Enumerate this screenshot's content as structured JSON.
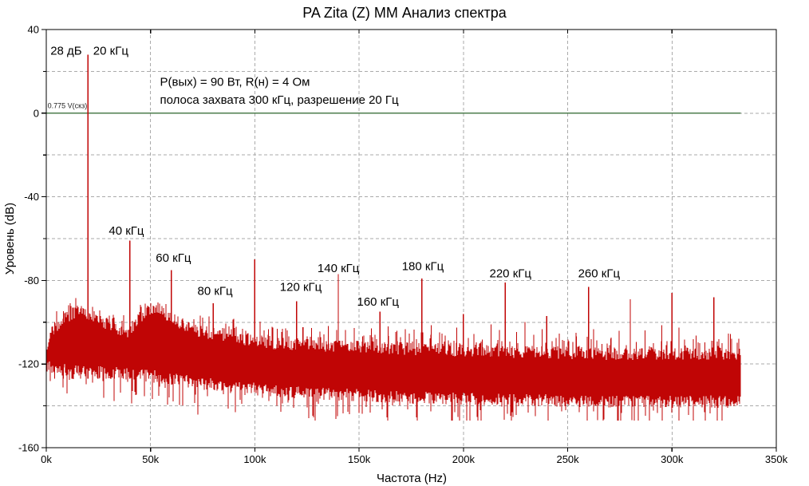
{
  "window": {
    "title": "PA Zita (Z) MM Анализ спектра"
  },
  "chart_data": {
    "type": "line",
    "title": "PA Zita (Z) MM Анализ спектра",
    "xlabel": "Частота (Hz)",
    "ylabel": "Уровень (dB)",
    "xlim_khz": [
      0,
      350
    ],
    "ylim_db": [
      -160,
      40
    ],
    "x_ticks": [
      {
        "value_khz": 0,
        "label": "0k"
      },
      {
        "value_khz": 50,
        "label": "50k"
      },
      {
        "value_khz": 100,
        "label": "100k"
      },
      {
        "value_khz": 150,
        "label": "150k"
      },
      {
        "value_khz": 200,
        "label": "200k"
      },
      {
        "value_khz": 250,
        "label": "250k"
      },
      {
        "value_khz": 300,
        "label": "300k"
      },
      {
        "value_khz": 350,
        "label": "350k"
      }
    ],
    "y_ticks": [
      {
        "value_db": 40,
        "label": "40"
      },
      {
        "value_db": 0,
        "label": "0"
      },
      {
        "value_db": -40,
        "label": "-40"
      },
      {
        "value_db": -80,
        "label": "-80"
      },
      {
        "value_db": -120,
        "label": "-120"
      },
      {
        "value_db": -160,
        "label": "-160"
      }
    ],
    "y_minor_ticks_db": [
      20,
      -20,
      -60,
      -100,
      -140
    ],
    "grid": {
      "style": "dashed",
      "color": "#aaaaaa",
      "x_lines_khz": [
        50,
        100,
        150,
        200,
        250,
        300
      ],
      "y_lines_db": [
        20,
        0,
        -20,
        -40,
        -60,
        -80,
        -100,
        -120,
        -140
      ]
    },
    "reference_line": {
      "level_db": 0,
      "label": "0.775 V(скз)",
      "color": "#4e7e4e"
    },
    "trace_color": "#c00505",
    "fundamental_khz": 20,
    "data_end_khz": 333,
    "harmonic_peaks": [
      {
        "freq_khz": 20,
        "level_db": 28
      },
      {
        "freq_khz": 40,
        "level_db": -61
      },
      {
        "freq_khz": 60,
        "level_db": -75
      },
      {
        "freq_khz": 80,
        "level_db": -91
      },
      {
        "freq_khz": 100,
        "level_db": -70
      },
      {
        "freq_khz": 120,
        "level_db": -90
      },
      {
        "freq_khz": 140,
        "level_db": -77
      },
      {
        "freq_khz": 160,
        "level_db": -95
      },
      {
        "freq_khz": 180,
        "level_db": -79
      },
      {
        "freq_khz": 200,
        "level_db": -96
      },
      {
        "freq_khz": 220,
        "level_db": -81
      },
      {
        "freq_khz": 240,
        "level_db": -97
      },
      {
        "freq_khz": 260,
        "level_db": -83
      },
      {
        "freq_khz": 280,
        "level_db": -89
      },
      {
        "freq_khz": 300,
        "level_db": -86
      },
      {
        "freq_khz": 320,
        "level_db": -88
      }
    ],
    "noise_model": {
      "top_envelope": [
        [
          0,
          -112
        ],
        [
          3,
          -104
        ],
        [
          8,
          -99
        ],
        [
          14,
          -95
        ],
        [
          18,
          -95
        ],
        [
          24,
          -98
        ],
        [
          30,
          -101
        ],
        [
          36,
          -105
        ],
        [
          40,
          -104
        ],
        [
          44,
          -99
        ],
        [
          48,
          -94
        ],
        [
          53,
          -93
        ],
        [
          58,
          -97
        ],
        [
          65,
          -101
        ],
        [
          72,
          -104
        ],
        [
          82,
          -106
        ],
        [
          95,
          -108
        ],
        [
          110,
          -110
        ],
        [
          130,
          -111
        ],
        [
          155,
          -112
        ],
        [
          185,
          -113
        ],
        [
          220,
          -114
        ],
        [
          270,
          -115
        ],
        [
          333,
          -115
        ]
      ],
      "bottom_envelope": [
        [
          0,
          -121
        ],
        [
          10,
          -123
        ],
        [
          25,
          -124
        ],
        [
          45,
          -125
        ],
        [
          60,
          -127
        ],
        [
          80,
          -130
        ],
        [
          100,
          -132
        ],
        [
          130,
          -134
        ],
        [
          170,
          -136
        ],
        [
          220,
          -137
        ],
        [
          280,
          -138
        ],
        [
          333,
          -138
        ]
      ],
      "sideband_spacing_khz": 4.1,
      "sideband_base_db": -97,
      "sideband_slope_db_per_khz": -0.028,
      "floor_min_db": -147
    },
    "annotations": [
      {
        "text": "28 дБ",
        "x_khz": 2,
        "y_db": 28,
        "small": false
      },
      {
        "text": "20 кГц",
        "x_khz": 22.5,
        "y_db": 28,
        "small": false
      },
      {
        "text": "P(вых) = 90 Вт, R(н) = 4 Ом",
        "x_khz": 54.5,
        "y_db": 13,
        "small": false
      },
      {
        "text": "полоса захвата 300 кГц, разрешение 20 Гц",
        "x_khz": 54.5,
        "y_db": 4.5,
        "small": false
      },
      {
        "text": "0.775 V(скз)",
        "x_khz": 0.6,
        "y_db": 2.5,
        "small": true
      },
      {
        "text": "40 кГц",
        "x_khz": 30,
        "y_db": -58,
        "small": false
      },
      {
        "text": "60 кГц",
        "x_khz": 52.5,
        "y_db": -71,
        "small": false
      },
      {
        "text": "80 кГц",
        "x_khz": 72.5,
        "y_db": -87,
        "small": false
      },
      {
        "text": "120 кГц",
        "x_khz": 112,
        "y_db": -85,
        "small": false
      },
      {
        "text": "140 кГц",
        "x_khz": 130,
        "y_db": -76,
        "small": false
      },
      {
        "text": "160 кГц",
        "x_khz": 149,
        "y_db": -92,
        "small": false
      },
      {
        "text": "180 кГц",
        "x_khz": 170.5,
        "y_db": -75,
        "small": false
      },
      {
        "text": "220 кГц",
        "x_khz": 212.5,
        "y_db": -78.5,
        "small": false
      },
      {
        "text": "260 кГц",
        "x_khz": 255,
        "y_db": -78.5,
        "small": false
      }
    ]
  }
}
